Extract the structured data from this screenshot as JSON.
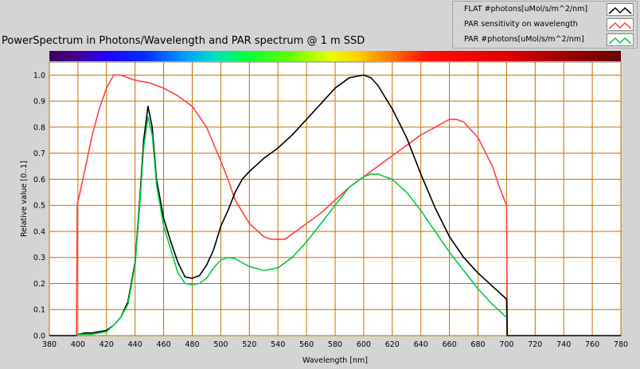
{
  "title": "PowerSpectrum in Photons/Wavelength and PAR spectrum @ 1 m SSD",
  "chart_data": {
    "type": "line",
    "title": "PowerSpectrum in Photons/Wavelength and PAR spectrum @ 1 m SSD",
    "xlabel": "Wavelength [nm]",
    "ylabel": "Relative value [0..1]",
    "xlim": [
      380,
      780
    ],
    "ylim": [
      0,
      1.05
    ],
    "xticks": [
      "380",
      "400",
      "420",
      "440",
      "460",
      "480",
      "500",
      "520",
      "540",
      "560",
      "580",
      "600",
      "620",
      "640",
      "660",
      "680",
      "700",
      "720",
      "740",
      "760",
      "780"
    ],
    "yticks": [
      "0.0",
      "0.1",
      "0.2",
      "0.3",
      "0.4",
      "0.5",
      "0.6",
      "0.7",
      "0.8",
      "0.9",
      "1.0"
    ],
    "grid": true,
    "legend_position": "top-right",
    "series": [
      {
        "name": "FLAT #photons[uMol/s/m^2/nm]",
        "color": "#000000",
        "points": [
          [
            380,
            0
          ],
          [
            399,
            0
          ],
          [
            400,
            0.005
          ],
          [
            405,
            0.01
          ],
          [
            410,
            0.01
          ],
          [
            415,
            0.015
          ],
          [
            420,
            0.02
          ],
          [
            425,
            0.04
          ],
          [
            430,
            0.07
          ],
          [
            435,
            0.13
          ],
          [
            440,
            0.28
          ],
          [
            443,
            0.5
          ],
          [
            446,
            0.75
          ],
          [
            449,
            0.88
          ],
          [
            452,
            0.8
          ],
          [
            455,
            0.6
          ],
          [
            460,
            0.45
          ],
          [
            465,
            0.36
          ],
          [
            470,
            0.28
          ],
          [
            475,
            0.225
          ],
          [
            480,
            0.22
          ],
          [
            485,
            0.23
          ],
          [
            490,
            0.27
          ],
          [
            495,
            0.33
          ],
          [
            500,
            0.42
          ],
          [
            505,
            0.48
          ],
          [
            510,
            0.55
          ],
          [
            515,
            0.6
          ],
          [
            520,
            0.63
          ],
          [
            530,
            0.68
          ],
          [
            540,
            0.72
          ],
          [
            550,
            0.77
          ],
          [
            560,
            0.83
          ],
          [
            570,
            0.89
          ],
          [
            580,
            0.95
          ],
          [
            590,
            0.99
          ],
          [
            600,
            1.0
          ],
          [
            605,
            0.99
          ],
          [
            610,
            0.96
          ],
          [
            620,
            0.87
          ],
          [
            630,
            0.76
          ],
          [
            640,
            0.62
          ],
          [
            650,
            0.49
          ],
          [
            660,
            0.38
          ],
          [
            670,
            0.3
          ],
          [
            680,
            0.24
          ],
          [
            690,
            0.19
          ],
          [
            700,
            0.14
          ],
          [
            700.5,
            0
          ],
          [
            780,
            0
          ]
        ]
      },
      {
        "name": "PAR sensitivity on wavelength",
        "color": "#ff4040",
        "points": [
          [
            399,
            0
          ],
          [
            399.5,
            0.5
          ],
          [
            405,
            0.64
          ],
          [
            410,
            0.77
          ],
          [
            415,
            0.87
          ],
          [
            420,
            0.95
          ],
          [
            425,
            1.0
          ],
          [
            430,
            1.0
          ],
          [
            435,
            0.99
          ],
          [
            440,
            0.98
          ],
          [
            450,
            0.97
          ],
          [
            460,
            0.95
          ],
          [
            470,
            0.92
          ],
          [
            480,
            0.88
          ],
          [
            490,
            0.8
          ],
          [
            500,
            0.67
          ],
          [
            505,
            0.6
          ],
          [
            510,
            0.52
          ],
          [
            520,
            0.43
          ],
          [
            530,
            0.38
          ],
          [
            535,
            0.37
          ],
          [
            545,
            0.37
          ],
          [
            550,
            0.39
          ],
          [
            560,
            0.43
          ],
          [
            570,
            0.47
          ],
          [
            580,
            0.52
          ],
          [
            590,
            0.57
          ],
          [
            600,
            0.61
          ],
          [
            610,
            0.65
          ],
          [
            620,
            0.69
          ],
          [
            630,
            0.73
          ],
          [
            640,
            0.77
          ],
          [
            650,
            0.8
          ],
          [
            660,
            0.83
          ],
          [
            665,
            0.83
          ],
          [
            670,
            0.82
          ],
          [
            680,
            0.76
          ],
          [
            690,
            0.65
          ],
          [
            695,
            0.57
          ],
          [
            700,
            0.5
          ],
          [
            700.5,
            0
          ]
        ]
      },
      {
        "name": "PAR #photons[uMol/s/m^2/nm]",
        "color": "#00cc44",
        "points": [
          [
            399,
            0
          ],
          [
            400,
            0.005
          ],
          [
            410,
            0.005
          ],
          [
            420,
            0.015
          ],
          [
            425,
            0.04
          ],
          [
            430,
            0.07
          ],
          [
            435,
            0.12
          ],
          [
            440,
            0.27
          ],
          [
            443,
            0.48
          ],
          [
            446,
            0.72
          ],
          [
            449,
            0.84
          ],
          [
            452,
            0.77
          ],
          [
            455,
            0.58
          ],
          [
            460,
            0.42
          ],
          [
            465,
            0.33
          ],
          [
            470,
            0.24
          ],
          [
            475,
            0.2
          ],
          [
            480,
            0.195
          ],
          [
            485,
            0.2
          ],
          [
            490,
            0.22
          ],
          [
            495,
            0.26
          ],
          [
            500,
            0.29
          ],
          [
            505,
            0.3
          ],
          [
            510,
            0.295
          ],
          [
            515,
            0.28
          ],
          [
            520,
            0.265
          ],
          [
            530,
            0.25
          ],
          [
            540,
            0.26
          ],
          [
            550,
            0.3
          ],
          [
            560,
            0.36
          ],
          [
            570,
            0.43
          ],
          [
            580,
            0.5
          ],
          [
            590,
            0.57
          ],
          [
            600,
            0.61
          ],
          [
            605,
            0.62
          ],
          [
            610,
            0.62
          ],
          [
            615,
            0.61
          ],
          [
            620,
            0.6
          ],
          [
            630,
            0.55
          ],
          [
            640,
            0.48
          ],
          [
            650,
            0.4
          ],
          [
            660,
            0.32
          ],
          [
            670,
            0.25
          ],
          [
            680,
            0.18
          ],
          [
            690,
            0.12
          ],
          [
            700,
            0.07
          ]
        ]
      }
    ]
  }
}
